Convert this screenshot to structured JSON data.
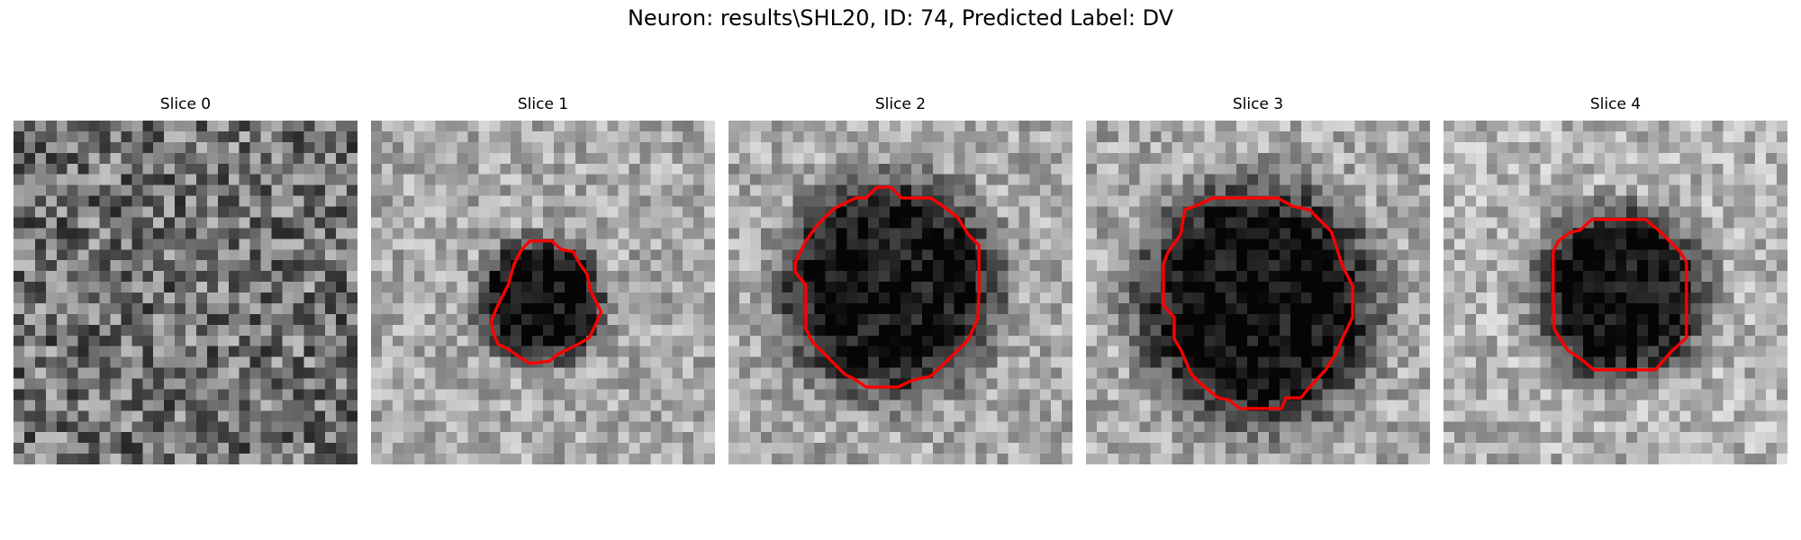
{
  "figure": {
    "title": "Neuron: results\\SHL20, ID: 74, Predicted Label: DV"
  },
  "panels": [
    {
      "title": "Slice 0",
      "has_outline": false
    },
    {
      "title": "Slice 1",
      "has_outline": true
    },
    {
      "title": "Slice 2",
      "has_outline": true
    },
    {
      "title": "Slice 3",
      "has_outline": true
    },
    {
      "title": "Slice 4",
      "has_outline": true
    }
  ],
  "colors": {
    "outline": "#ff0000"
  },
  "image": {
    "grid": 32,
    "colormap": "gray"
  }
}
